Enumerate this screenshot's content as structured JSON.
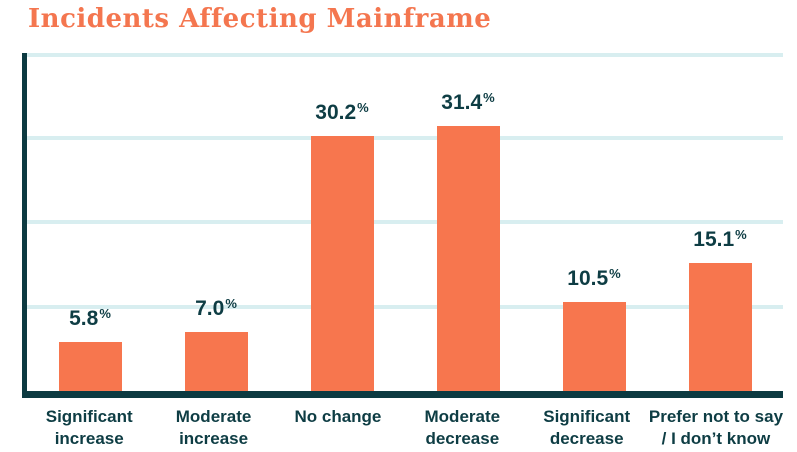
{
  "chart_data": {
    "type": "bar",
    "title": "Incidents Affecting Mainframe",
    "categories": [
      "Significant increase",
      "Moderate increase",
      "No change",
      "Moderate decrease",
      "Significant decrease",
      "Prefer not to say / I don't know"
    ],
    "category_lines": [
      [
        "Significant",
        "increase"
      ],
      [
        "Moderate",
        "increase"
      ],
      [
        "No change"
      ],
      [
        "Moderate",
        "decrease"
      ],
      [
        "Significant",
        "decrease"
      ],
      [
        "Prefer not to say",
        "/ I don’t know"
      ]
    ],
    "values": [
      5.8,
      7.0,
      30.2,
      31.4,
      10.5,
      15.1
    ],
    "value_labels": [
      "5.8",
      "7.0",
      "30.2",
      "31.4",
      "10.5",
      "15.1"
    ],
    "unit": "%",
    "xlabel": "",
    "ylabel": "",
    "ylim": [
      0,
      40
    ],
    "gridline_step": 10,
    "grid": true,
    "legend": "none"
  },
  "colors": {
    "bar": "#F7764E",
    "title": "#F4764F",
    "text": "#0E3D44",
    "axis": "#0C3A41",
    "gridline": "#D8EEF0",
    "background": "#FFFFFF"
  }
}
